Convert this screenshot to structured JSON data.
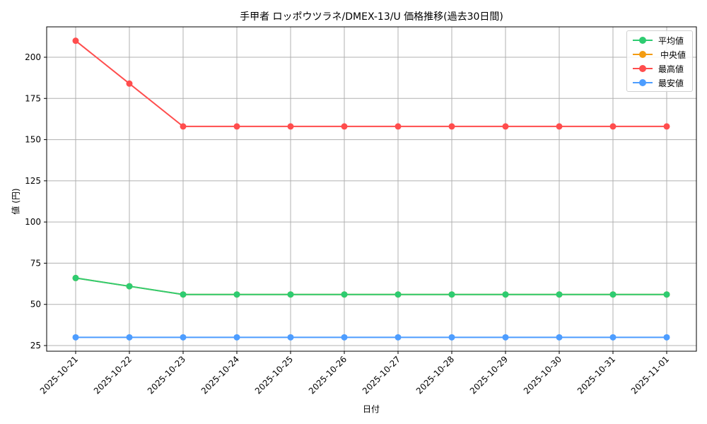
{
  "chart_data": {
    "type": "line",
    "title": "手甲者 ロッポウツラネ/DMEX-13/U 価格推移(過去30日間)",
    "xlabel": "日付",
    "ylabel": "値 (円)",
    "categories": [
      "2025-10-21",
      "2025-10-22",
      "2025-10-23",
      "2025-10-24",
      "2025-10-25",
      "2025-10-26",
      "2025-10-27",
      "2025-10-28",
      "2025-10-29",
      "2025-10-30",
      "2025-10-31",
      "2025-11-01"
    ],
    "series": [
      {
        "name": "平均値",
        "color": "#2ecc71",
        "values": [
          66,
          61,
          56,
          56,
          56,
          56,
          56,
          56,
          56,
          56,
          56,
          56
        ]
      },
      {
        "name": "中央値",
        "color": "#f39c12",
        "values": [
          66,
          61,
          56,
          56,
          56,
          56,
          56,
          56,
          56,
          56,
          56,
          56
        ]
      },
      {
        "name": "最高値",
        "color": "#ff4d4d",
        "values": [
          210,
          184,
          158,
          158,
          158,
          158,
          158,
          158,
          158,
          158,
          158,
          158
        ]
      },
      {
        "name": "最安値",
        "color": "#4d9dff",
        "values": [
          30,
          30,
          30,
          30,
          30,
          30,
          30,
          30,
          30,
          30,
          30,
          30
        ]
      }
    ],
    "yticks": [
      25,
      50,
      75,
      100,
      125,
      150,
      175,
      200
    ],
    "ylim": [
      21,
      219
    ],
    "grid": true,
    "legend_position": "upper right",
    "x_tick_rotation": 45
  }
}
